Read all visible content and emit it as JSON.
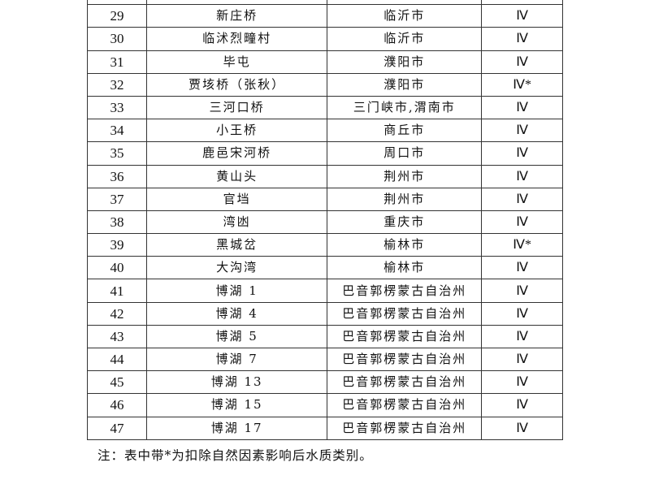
{
  "rows": [
    [
      "29",
      "新庄桥",
      "临沂市",
      "Ⅳ"
    ],
    [
      "30",
      "临沭烈疃村",
      "临沂市",
      "Ⅳ"
    ],
    [
      "31",
      "毕屯",
      "濮阳市",
      "Ⅳ"
    ],
    [
      "32",
      "贾垓桥（张秋）",
      "濮阳市",
      "Ⅳ*"
    ],
    [
      "33",
      "三河口桥",
      "三门峡市,渭南市",
      "Ⅳ"
    ],
    [
      "34",
      "小王桥",
      "商丘市",
      "Ⅳ"
    ],
    [
      "35",
      "鹿邑宋河桥",
      "周口市",
      "Ⅳ"
    ],
    [
      "36",
      "黄山头",
      "荆州市",
      "Ⅳ"
    ],
    [
      "37",
      "官垱",
      "荆州市",
      "Ⅳ"
    ],
    [
      "38",
      "湾凼",
      "重庆市",
      "Ⅳ"
    ],
    [
      "39",
      "黑城岔",
      "榆林市",
      "Ⅳ*"
    ],
    [
      "40",
      "大沟湾",
      "榆林市",
      "Ⅳ"
    ],
    [
      "41",
      "博湖 1",
      "巴音郭楞蒙古自治州",
      "Ⅳ"
    ],
    [
      "42",
      "博湖 4",
      "巴音郭楞蒙古自治州",
      "Ⅳ"
    ],
    [
      "43",
      "博湖 5",
      "巴音郭楞蒙古自治州",
      "Ⅳ"
    ],
    [
      "44",
      "博湖 7",
      "巴音郭楞蒙古自治州",
      "Ⅳ"
    ],
    [
      "45",
      "博湖 13",
      "巴音郭楞蒙古自治州",
      "Ⅳ"
    ],
    [
      "46",
      "博湖 15",
      "巴音郭楞蒙古自治州",
      "Ⅳ"
    ],
    [
      "47",
      "博湖 17",
      "巴音郭楞蒙古自治州",
      "Ⅳ"
    ]
  ],
  "note": "注：表中带*为扣除自然因素影响后水质类别。"
}
